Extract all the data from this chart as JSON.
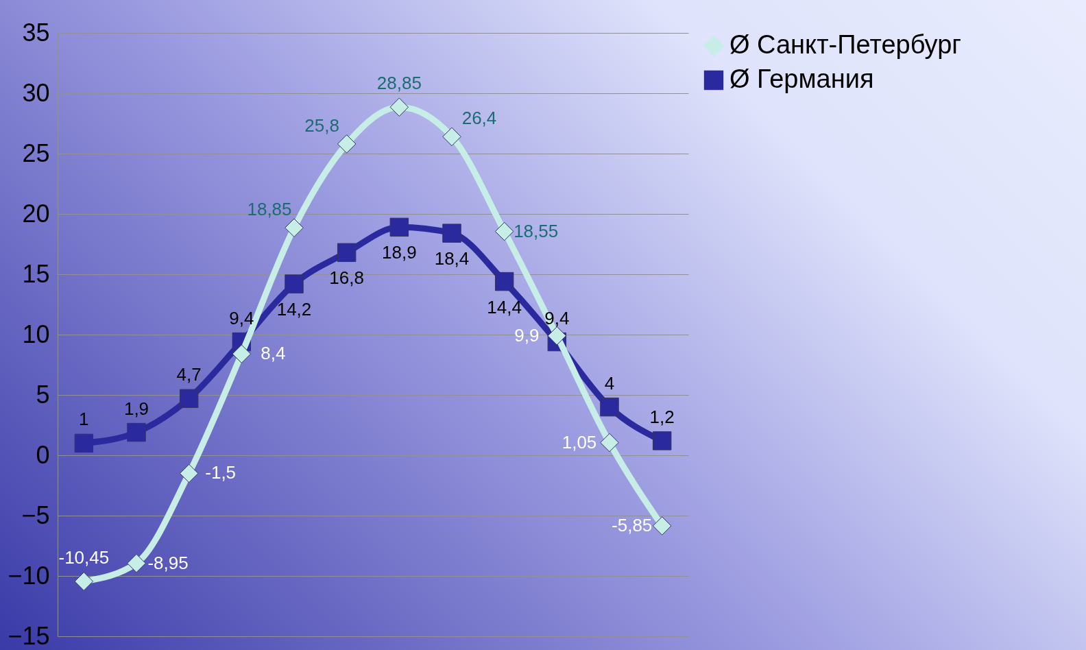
{
  "chart_data": {
    "type": "line",
    "categories": [
      null,
      null,
      null,
      null,
      null,
      null,
      null,
      null,
      null,
      null,
      null,
      null
    ],
    "ylim": [
      -15,
      35
    ],
    "yticks": [
      -15,
      -10,
      -5,
      0,
      5,
      10,
      15,
      20,
      25,
      30,
      35
    ],
    "grid": "y",
    "legend": "right",
    "line_style": "solid",
    "series": [
      {
        "name": "Ø Санкт-Петербург",
        "color": "#c6eee6",
        "marker": "diamond",
        "values": [
          -10.45,
          -8.95,
          -1.5,
          8.4,
          18.85,
          25.8,
          28.85,
          26.4,
          18.55,
          9.9,
          1.05,
          -5.85
        ],
        "value_labels": [
          "-10,45",
          "-8,95",
          "-1,5",
          "8,4",
          "18,85",
          "25,8",
          "28,85",
          "26,4",
          "18,55",
          "9,9",
          "1,05",
          "-5,85"
        ]
      },
      {
        "name": "Ø Германия",
        "color": "#2a2a9e",
        "marker": "square",
        "values": [
          1,
          1.9,
          4.7,
          9.4,
          14.2,
          16.8,
          18.9,
          18.4,
          14.4,
          9.4,
          4,
          1.2
        ],
        "value_labels": [
          "1",
          "1,9",
          "4,7",
          "9,4",
          "14,2",
          "16,8",
          "18,9",
          "18,4",
          "14,4",
          "9,4",
          "4",
          "1,2"
        ]
      }
    ]
  }
}
